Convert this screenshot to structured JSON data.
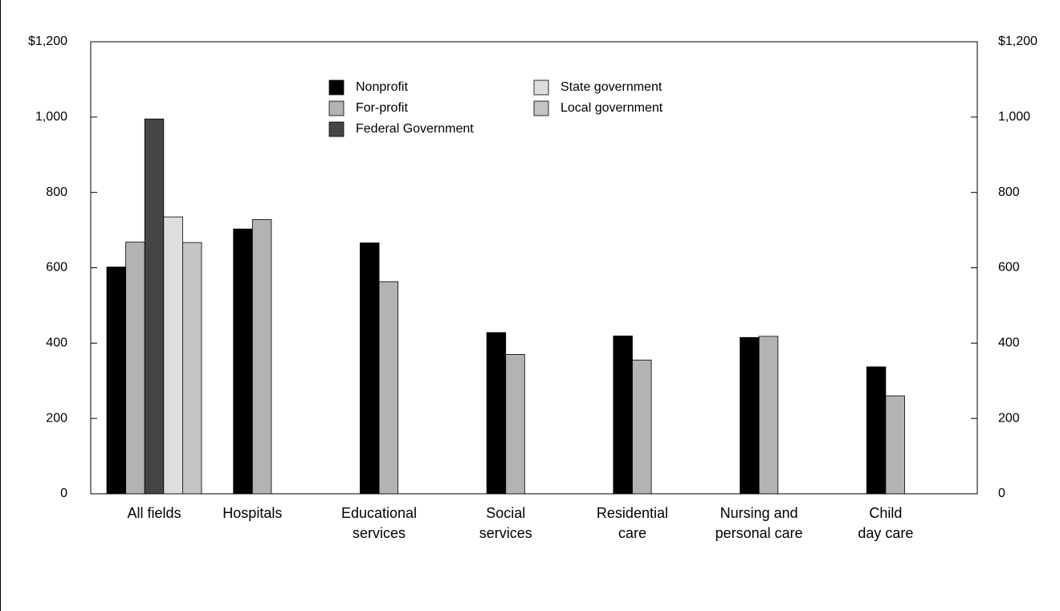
{
  "chart_data": {
    "type": "bar",
    "categories": [
      [
        "All fields"
      ],
      [
        "Hospitals"
      ],
      [
        "Educational",
        "services"
      ],
      [
        "Social",
        "services"
      ],
      [
        "Residential",
        "care"
      ],
      [
        "Nursing and",
        "personal care"
      ],
      [
        "Child",
        "day care"
      ]
    ],
    "series": [
      {
        "name": "Nonprofit",
        "color": "#000000",
        "values": [
          602,
          703,
          666,
          428,
          419,
          415,
          337
        ]
      },
      {
        "name": "For-profit",
        "color": "#b3b3b3",
        "values": [
          668,
          728,
          563,
          370,
          355,
          418,
          260
        ]
      },
      {
        "name": "Federal Government",
        "color": "#454545",
        "values": [
          995,
          null,
          null,
          null,
          null,
          null,
          null
        ]
      },
      {
        "name": "State government",
        "color": "#dedede",
        "values": [
          735,
          null,
          null,
          null,
          null,
          null,
          null
        ]
      },
      {
        "name": "Local government",
        "color": "#c4c4c4",
        "values": [
          667,
          null,
          null,
          null,
          null,
          null,
          null
        ]
      }
    ],
    "ylim": [
      0,
      1200
    ],
    "yticks": [
      0,
      200,
      400,
      600,
      800,
      {
        "value": 1000,
        "label": "1,000"
      },
      {
        "value": 1200,
        "label": "$1,200"
      }
    ],
    "y2lim": [
      0,
      1200
    ],
    "y2ticks": [
      0,
      200,
      400,
      600,
      800,
      {
        "value": 1000,
        "label": "1,000"
      },
      {
        "value": 1200,
        "label": "$1,200"
      }
    ],
    "legend": "upper center"
  }
}
